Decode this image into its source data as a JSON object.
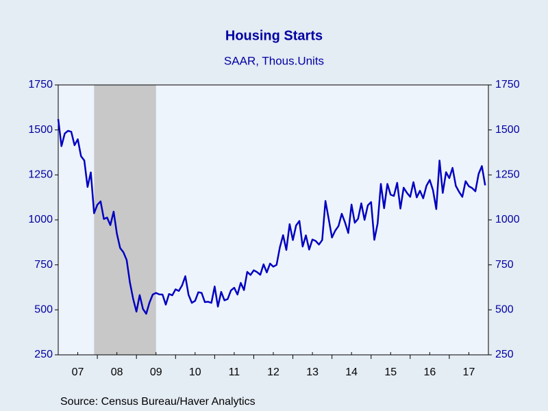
{
  "chart_data": {
    "type": "line",
    "title": "Housing Starts",
    "subtitle": "SAAR, Thous.Units",
    "source": "Source:  Census Bureau/Haver Analytics",
    "shaded_ranges": [
      [
        2007.917,
        2009.5
      ]
    ],
    "shade_color": "#c8c8c8",
    "x": [
      2007,
      2007.083,
      2007.167,
      2007.25,
      2007.333,
      2007.417,
      2007.5,
      2007.583,
      2007.667,
      2007.75,
      2007.833,
      2007.917,
      2008,
      2008.083,
      2008.167,
      2008.25,
      2008.333,
      2008.417,
      2008.5,
      2008.583,
      2008.667,
      2008.75,
      2008.833,
      2008.917,
      2009,
      2009.083,
      2009.167,
      2009.25,
      2009.333,
      2009.417,
      2009.5,
      2009.583,
      2009.667,
      2009.75,
      2009.833,
      2009.917,
      2010,
      2010.083,
      2010.167,
      2010.25,
      2010.333,
      2010.417,
      2010.5,
      2010.583,
      2010.667,
      2010.75,
      2010.833,
      2010.917,
      2011,
      2011.083,
      2011.167,
      2011.25,
      2011.333,
      2011.417,
      2011.5,
      2011.583,
      2011.667,
      2011.75,
      2011.833,
      2011.917,
      2012,
      2012.083,
      2012.167,
      2012.25,
      2012.333,
      2012.417,
      2012.5,
      2012.583,
      2012.667,
      2012.75,
      2012.833,
      2012.917,
      2013,
      2013.083,
      2013.167,
      2013.25,
      2013.333,
      2013.417,
      2013.5,
      2013.583,
      2013.667,
      2013.75,
      2013.833,
      2013.917,
      2014,
      2014.083,
      2014.167,
      2014.25,
      2014.333,
      2014.417,
      2014.5,
      2014.583,
      2014.667,
      2014.75,
      2014.833,
      2014.917,
      2015,
      2015.083,
      2015.167,
      2015.25,
      2015.333,
      2015.417,
      2015.5,
      2015.583,
      2015.667,
      2015.75,
      2015.833,
      2015.917,
      2016,
      2016.083,
      2016.167,
      2016.25,
      2016.333,
      2016.417,
      2016.5,
      2016.583,
      2016.667,
      2016.75,
      2016.833,
      2016.917,
      2017,
      2017.083,
      2017.167,
      2017.25,
      2017.333,
      2017.417,
      2017.5,
      2017.583,
      2017.667,
      2017.75,
      2017.833,
      2017.917
    ],
    "series": [
      {
        "name": "Housing Starts",
        "color": "#0000c0",
        "values": [
          1560,
          1410,
          1480,
          1495,
          1490,
          1415,
          1448,
          1354,
          1330,
          1183,
          1264,
          1037,
          1084,
          1103,
          1005,
          1013,
          971,
          1046,
          923,
          844,
          820,
          777,
          652,
          560,
          490,
          582,
          505,
          478,
          540,
          585,
          594,
          586,
          585,
          529,
          588,
          581,
          614,
          605,
          636,
          687,
          583,
          539,
          550,
          598,
          594,
          543,
          545,
          539,
          630,
          518,
          600,
          553,
          560,
          608,
          623,
          585,
          650,
          610,
          711,
          694,
          720,
          710,
          695,
          753,
          708,
          757,
          740,
          750,
          847,
          915,
          833,
          976,
          888,
          969,
          994,
          852,
          914,
          835,
          891,
          883,
          863,
          888,
          1105,
          1004,
          902,
          940,
          966,
          1034,
          986,
          927,
          1085,
          984,
          1006,
          1092,
          1000,
          1081,
          1099,
          889,
          980,
          1200,
          1065,
          1200,
          1140,
          1133,
          1206,
          1063,
          1179,
          1150,
          1128,
          1210,
          1125,
          1162,
          1120,
          1190,
          1222,
          1165,
          1060,
          1330,
          1150,
          1265,
          1232,
          1289,
          1189,
          1156,
          1128,
          1215,
          1187,
          1177,
          1159,
          1256,
          1299,
          1192
        ]
      }
    ],
    "xlim": [
      2007,
      2018
    ],
    "xticks": [
      {
        "value": 2007.5,
        "label": "07"
      },
      {
        "value": 2008.5,
        "label": "08"
      },
      {
        "value": 2009.5,
        "label": "09"
      },
      {
        "value": 2010.5,
        "label": "10"
      },
      {
        "value": 2011.5,
        "label": "11"
      },
      {
        "value": 2012.5,
        "label": "12"
      },
      {
        "value": 2013.5,
        "label": "13"
      },
      {
        "value": 2014.5,
        "label": "14"
      },
      {
        "value": 2015.5,
        "label": "15"
      },
      {
        "value": 2016.5,
        "label": "16"
      },
      {
        "value": 2017.5,
        "label": "17"
      }
    ],
    "ylim": [
      250,
      1750
    ],
    "yticks": [
      250,
      500,
      750,
      1000,
      1250,
      1500,
      1750
    ],
    "y2lim": [
      250,
      1750
    ],
    "y2ticks": [
      250,
      500,
      750,
      1000,
      1250,
      1500,
      1750
    ],
    "grid": false,
    "plot_background": "#eef4fc"
  }
}
